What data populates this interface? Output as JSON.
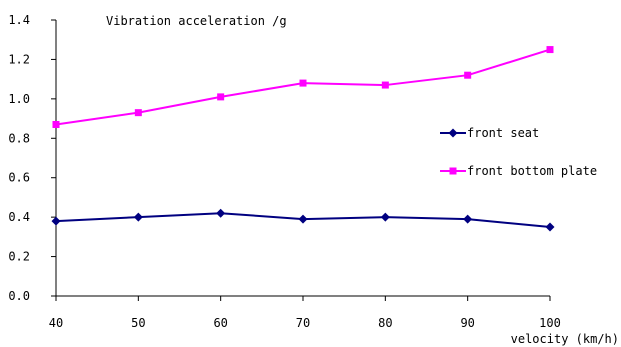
{
  "chart_data": {
    "type": "line",
    "title": "Vibration acceleration /g",
    "xlabel": "velocity (km/h)",
    "ylabel": "",
    "x": [
      40,
      50,
      60,
      70,
      80,
      90,
      100
    ],
    "x_ticks": [
      "40",
      "50",
      "60",
      "70",
      "80",
      "90",
      "100"
    ],
    "ylim": [
      0,
      1.4
    ],
    "y_ticks": [
      "0.0",
      "0.2",
      "0.4",
      "0.6",
      "0.8",
      "1.0",
      "1.2",
      "1.4"
    ],
    "grid": false,
    "legend_position": "right",
    "series": [
      {
        "name": "front seat",
        "values": [
          0.38,
          0.4,
          0.42,
          0.39,
          0.4,
          0.39,
          0.35
        ],
        "color": "#000080",
        "marker": "diamond"
      },
      {
        "name": "front bottom plate",
        "values": [
          0.87,
          0.93,
          1.01,
          1.08,
          1.07,
          1.12,
          1.25
        ],
        "color": "#FF00FF",
        "marker": "square"
      }
    ]
  }
}
